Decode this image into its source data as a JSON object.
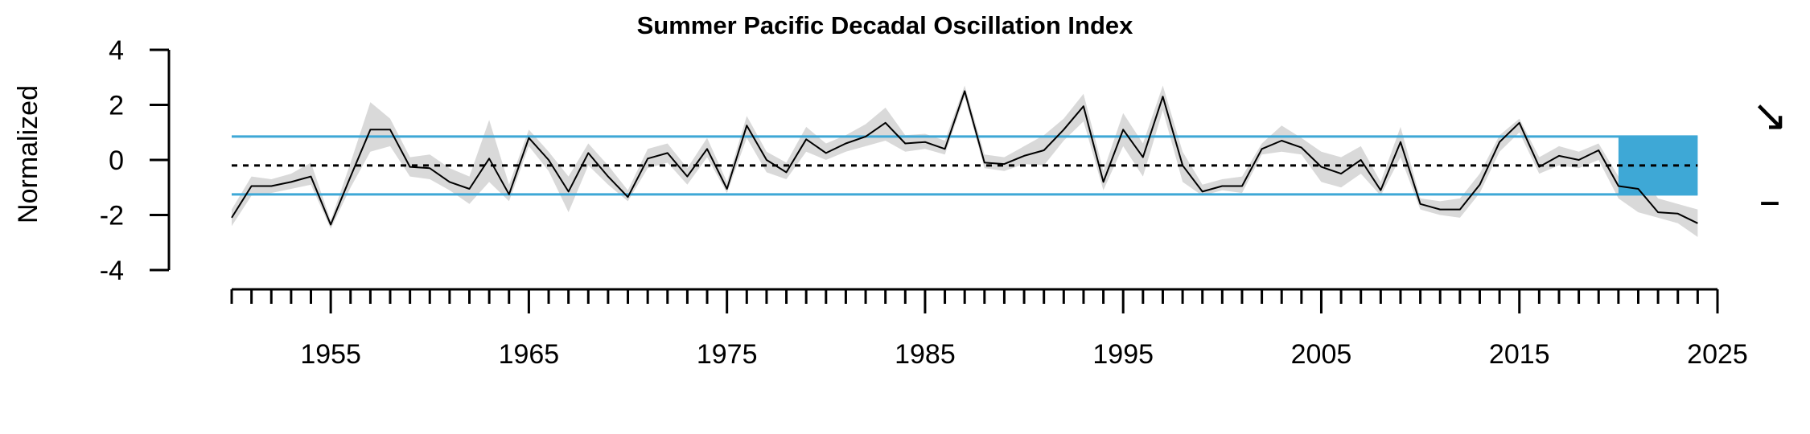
{
  "chart_data": {
    "type": "line",
    "title": "Summer Pacific Decadal Oscillation Index",
    "ylabel": "Normalized",
    "xlabel": "",
    "xlim": [
      1950,
      2025
    ],
    "ylim": [
      -4,
      4
    ],
    "y_ticks": [
      "4",
      "2",
      "0",
      "-2",
      "-4"
    ],
    "x_tick_labels": [
      "1955",
      "1965",
      "1975",
      "1985",
      "1995",
      "2005",
      "2015",
      "2025"
    ],
    "mean": -0.2,
    "sd_upper": 0.85,
    "sd_lower": -1.25,
    "highlight_start": 2020,
    "highlight_end": 2024,
    "trend_symbol": "↘",
    "mean_symbol": "–",
    "colors": {
      "line": "#000000",
      "band": "#d9d9d9",
      "threshold": "#3ea8d6",
      "highlight": "#3ea8d6"
    },
    "series": [
      {
        "x": [
          1950,
          1951,
          1952,
          1953,
          1954,
          1955,
          1956,
          1957,
          1958,
          1959,
          1960,
          1961,
          1962,
          1963,
          1964,
          1965,
          1966,
          1967,
          1968,
          1969,
          1970,
          1971,
          1972,
          1973,
          1974,
          1975,
          1976,
          1977,
          1978,
          1979,
          1980,
          1981,
          1982,
          1983,
          1984,
          1985,
          1986,
          1987,
          1988,
          1989,
          1990,
          1991,
          1992,
          1993,
          1994,
          1995,
          1996,
          1997,
          1998,
          1999,
          2000,
          2001,
          2002,
          2003,
          2004,
          2005,
          2006,
          2007,
          2008,
          2009,
          2010,
          2011,
          2012,
          2013,
          2014,
          2015,
          2016,
          2017,
          2018,
          2019,
          2020,
          2021,
          2022,
          2023,
          2024
        ],
        "y": [
          -2.1,
          -0.95,
          -0.95,
          -0.8,
          -0.6,
          -2.35,
          -0.6,
          1.1,
          1.1,
          -0.25,
          -0.3,
          -0.8,
          -1.05,
          0.05,
          -1.25,
          0.8,
          0.0,
          -1.15,
          0.25,
          -0.6,
          -1.35,
          0.05,
          0.25,
          -0.6,
          0.4,
          -1.05,
          1.25,
          0.0,
          -0.45,
          0.75,
          0.25,
          0.6,
          0.85,
          1.35,
          0.6,
          0.65,
          0.4,
          2.5,
          -0.1,
          -0.15,
          0.15,
          0.35,
          1.1,
          1.95,
          -0.8,
          1.1,
          0.1,
          2.3,
          -0.2,
          -1.15,
          -0.95,
          -0.95,
          0.4,
          0.7,
          0.45,
          -0.25,
          -0.5,
          0.0,
          -1.1,
          0.65,
          -1.6,
          -1.8,
          -1.8,
          -0.9,
          0.65,
          1.35,
          -0.25,
          0.15,
          0.0,
          0.35,
          -0.95,
          -1.05,
          -1.9,
          -1.95,
          -2.3
        ],
        "lower": [
          -2.4,
          -1.3,
          -1.2,
          -1.05,
          -0.9,
          -2.5,
          -1.0,
          0.3,
          0.5,
          -0.6,
          -0.7,
          -1.1,
          -1.6,
          -0.8,
          -1.5,
          0.5,
          -0.4,
          -1.9,
          -0.2,
          -0.9,
          -1.5,
          -0.3,
          -0.1,
          -0.9,
          0.1,
          -1.2,
          0.8,
          -0.45,
          -0.7,
          0.3,
          0.0,
          0.3,
          0.5,
          0.7,
          0.3,
          0.4,
          0.2,
          2.3,
          -0.3,
          -0.4,
          -0.15,
          -0.2,
          0.7,
          1.4,
          -1.1,
          0.5,
          -0.6,
          1.8,
          -0.8,
          -1.3,
          -1.1,
          -1.2,
          0.2,
          0.3,
          0.2,
          -0.8,
          -1.0,
          -0.5,
          -1.3,
          0.1,
          -1.8,
          -2.0,
          -2.1,
          -1.2,
          0.3,
          1.0,
          -0.5,
          -0.2,
          -0.3,
          0.0,
          -1.4,
          -1.9,
          -2.1,
          -2.3,
          -2.8
        ],
        "upper": [
          -1.8,
          -0.6,
          -0.7,
          -0.5,
          -0.1,
          -2.2,
          -0.1,
          2.1,
          1.5,
          0.1,
          0.2,
          -0.3,
          -0.6,
          1.45,
          -0.9,
          1.1,
          0.3,
          -0.6,
          0.6,
          -0.2,
          -1.1,
          0.4,
          0.6,
          -0.3,
          0.8,
          -0.8,
          1.6,
          0.3,
          -0.1,
          1.2,
          0.6,
          0.9,
          1.3,
          1.9,
          0.9,
          0.95,
          0.7,
          2.7,
          0.2,
          0.1,
          0.5,
          0.9,
          1.5,
          2.4,
          -0.4,
          1.7,
          0.6,
          2.7,
          0.3,
          -0.9,
          -0.7,
          -0.6,
          0.6,
          1.25,
          0.8,
          0.3,
          0.1,
          0.5,
          -0.8,
          1.2,
          -1.4,
          -1.5,
          -1.4,
          -0.5,
          0.9,
          1.5,
          0.1,
          0.5,
          0.3,
          0.6,
          -0.6,
          -0.4,
          -1.4,
          -1.6,
          -1.8
        ]
      }
    ]
  }
}
